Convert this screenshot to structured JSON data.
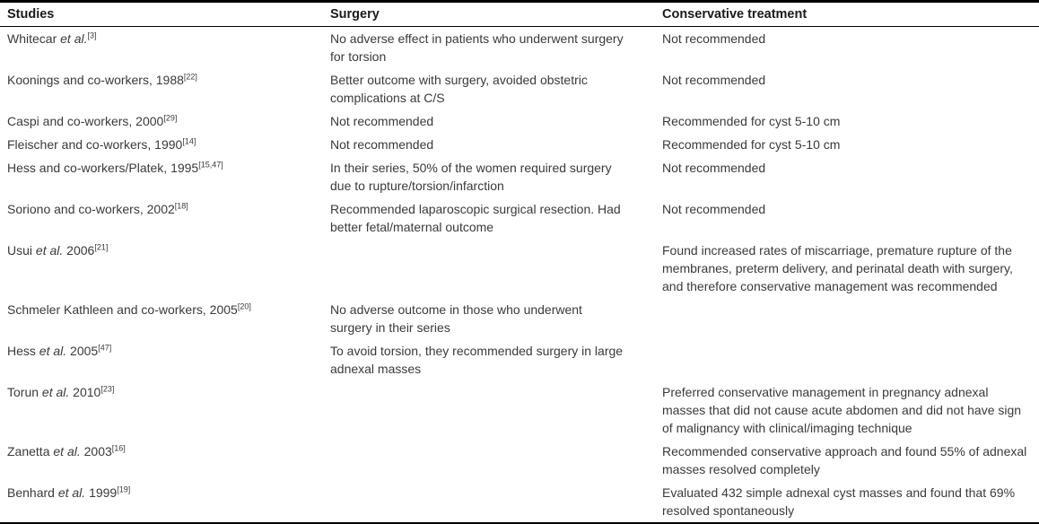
{
  "colors": {
    "text": "#3a3a3a",
    "header_text": "#1a1a1a",
    "border": "#000000",
    "background": "#ffffff"
  },
  "table": {
    "columns": [
      {
        "label": "Studies"
      },
      {
        "label": "Surgery"
      },
      {
        "label": "Conservative treatment"
      }
    ],
    "rows": [
      {
        "study": {
          "pre": "Whitecar ",
          "italic": "et al.",
          "post": "",
          "ref": "[3]"
        },
        "surgery": "No adverse effect in patients who underwent surgery for torsion",
        "conservative": "Not recommended"
      },
      {
        "study": {
          "pre": "Koonings and co-workers, 1988",
          "italic": "",
          "post": "",
          "ref": "[22]"
        },
        "surgery": "Better outcome with surgery, avoided obstetric complications at C/S",
        "conservative": "Not recommended"
      },
      {
        "study": {
          "pre": "Caspi and co-workers, 2000",
          "italic": "",
          "post": "",
          "ref": "[29]"
        },
        "surgery": "Not recommended",
        "conservative": "Recommended for cyst 5-10 cm"
      },
      {
        "study": {
          "pre": "Fleischer and co-workers, 1990",
          "italic": "",
          "post": "",
          "ref": "[14]"
        },
        "surgery": "Not recommended",
        "conservative": "Recommended for cyst 5-10 cm"
      },
      {
        "study": {
          "pre": "Hess and co-workers/Platek, 1995",
          "italic": "",
          "post": "",
          "ref": "[15,47]"
        },
        "surgery": "In their series, 50% of the women required surgery due to rupture/torsion/infarction",
        "conservative": "Not recommended"
      },
      {
        "study": {
          "pre": "Soriono and co-workers, 2002",
          "italic": "",
          "post": "",
          "ref": "[18]"
        },
        "surgery": "Recommended laparoscopic surgical resection. Had better fetal/maternal outcome",
        "conservative": "Not recommended"
      },
      {
        "study": {
          "pre": "Usui ",
          "italic": "et al.",
          "post": " 2006",
          "ref": "[21]"
        },
        "surgery": "",
        "conservative": "Found increased rates of miscarriage, premature rupture of the membranes, preterm delivery, and perinatal death with surgery, and therefore conservative management was recommended"
      },
      {
        "study": {
          "pre": "Schmeler Kathleen and co-workers, 2005",
          "italic": "",
          "post": "",
          "ref": "[20]"
        },
        "surgery": "No adverse outcome in those who underwent surgery in their series",
        "conservative": ""
      },
      {
        "study": {
          "pre": "Hess ",
          "italic": "et al.",
          "post": " 2005",
          "ref": "[47]"
        },
        "surgery": "To avoid torsion, they recommended surgery in large adnexal masses",
        "conservative": ""
      },
      {
        "study": {
          "pre": "Torun ",
          "italic": "et al.",
          "post": " 2010",
          "ref": "[23]"
        },
        "surgery": "",
        "conservative": "Preferred conservative management in pregnancy adnexal masses that did not cause acute abdomen and did not have sign of malignancy with clinical/imaging technique"
      },
      {
        "study": {
          "pre": "Zanetta ",
          "italic": "et al.",
          "post": " 2003",
          "ref": "[16]"
        },
        "surgery": "",
        "conservative": "Recommended conservative approach and found 55% of adnexal masses resolved completely"
      },
      {
        "study": {
          "pre": "Benhard ",
          "italic": "et al.",
          "post": " 1999",
          "ref": "[19]"
        },
        "surgery": "",
        "conservative": "Evaluated 432 simple adnexal cyst masses and found that 69% resolved spontaneously"
      }
    ]
  }
}
